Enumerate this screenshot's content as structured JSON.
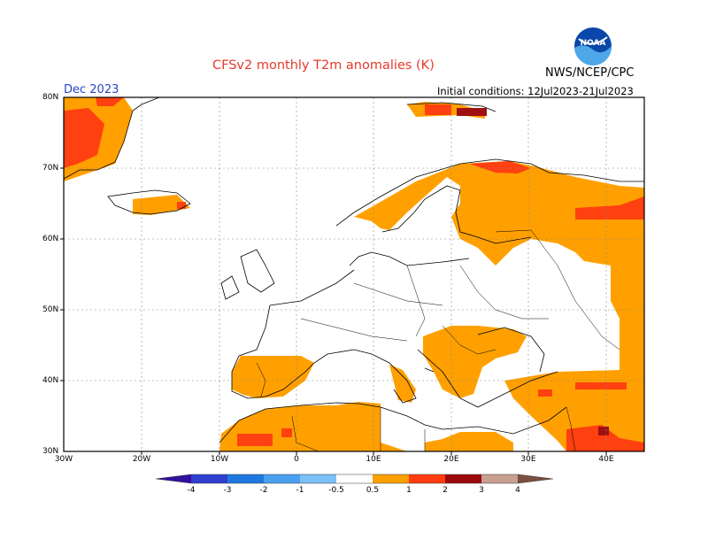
{
  "header": {
    "title": "CFSv2 monthly T2m anomalies (K)",
    "org": "NWS/NCEP/CPC",
    "month": "Dec 2023",
    "initial_conditions": "Initial conditions: 12Jul2023-21Jul2023",
    "logo_text": "NOAA"
  },
  "map": {
    "lat_labels": [
      "80N",
      "70N",
      "60N",
      "50N",
      "40N",
      "30N"
    ],
    "lon_labels": [
      "30W",
      "20W",
      "10W",
      "0",
      "10E",
      "20E",
      "30E",
      "40E"
    ],
    "grid": true
  },
  "colorbar": {
    "labels": [
      "-4",
      "-3",
      "-2",
      "-1",
      "-0.5",
      "0.5",
      "1",
      "2",
      "3",
      "4"
    ],
    "colors": [
      "#3210a0",
      "#2f3fd0",
      "#1e78e0",
      "#4aa0f0",
      "#7cc0f8",
      "#ffffff",
      "#fca000",
      "#ff3c10",
      "#cc2a10",
      "#9a0a0a",
      "#c8a090",
      "#7a5040"
    ]
  },
  "colors": {
    "anom_0_5_1": "#ffa000",
    "anom_1_2": "#ff4010",
    "anom_2_3": "#a01010",
    "title": "#e8392a",
    "month": "#2a44c8"
  }
}
